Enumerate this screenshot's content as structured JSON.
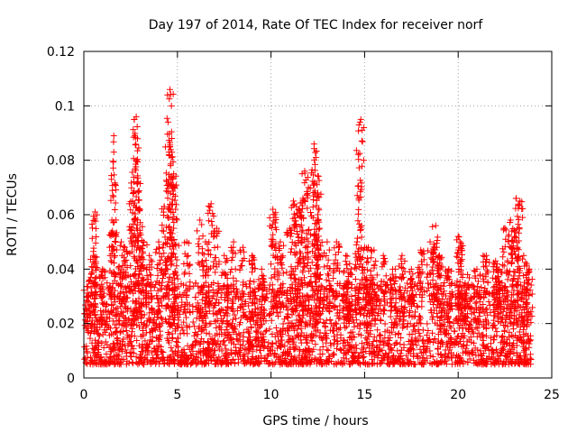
{
  "chart_data": {
    "type": "scatter",
    "title": "Day 197 of 2014, Rate Of TEC Index for receiver norf",
    "xlabel": "GPS time / hours",
    "ylabel": "ROTI / TECUs",
    "xlim": [
      0,
      25
    ],
    "ylim": [
      0,
      0.12
    ],
    "xticks": [
      0,
      5,
      10,
      15,
      20,
      25
    ],
    "yticks": [
      0,
      0.02,
      0.04,
      0.06,
      0.08,
      0.1,
      0.12
    ],
    "xtick_labels": [
      "0",
      "5",
      "10",
      "15",
      "20",
      "25"
    ],
    "ytick_labels": [
      "0",
      "0.02",
      "0.04",
      "0.06",
      "0.08",
      "0.1",
      "0.12"
    ],
    "grid": true,
    "marker": "+",
    "color": "#ff0000",
    "x_range_of_data": [
      0,
      23.9
    ],
    "series": [
      {
        "x": [
          0.3,
          0.5,
          0.6,
          1.0,
          1.5,
          1.6,
          1.6,
          2.0,
          2.2,
          2.6,
          2.7,
          2.8,
          2.8,
          2.9,
          3.0,
          3.2,
          3.5,
          4.0,
          4.3,
          4.5,
          4.6,
          4.6,
          4.7,
          4.8,
          4.9,
          5.5,
          6.2,
          6.5,
          6.8,
          7.1,
          7.5,
          8.0,
          8.5,
          9.0,
          9.5,
          10.1,
          10.2,
          10.5,
          11.0,
          11.2,
          11.4,
          11.5,
          11.7,
          11.8,
          12.0,
          12.3,
          12.4,
          12.5,
          12.5,
          12.6,
          13.0,
          13.5,
          14.0,
          14.2,
          14.6,
          14.7,
          14.8,
          15.0,
          15.2,
          15.5,
          16.0,
          16.5,
          17.0,
          17.5,
          18.0,
          18.5,
          18.8,
          19.0,
          19.5,
          20.0,
          20.1,
          20.5,
          21.0,
          21.5,
          22.0,
          22.2,
          22.5,
          22.8,
          23.0,
          23.1,
          23.3,
          23.5,
          23.8
        ],
        "y": [
          0.036,
          0.045,
          0.061,
          0.04,
          0.058,
          0.083,
          0.089,
          0.05,
          0.048,
          0.065,
          0.095,
          0.096,
          0.08,
          0.072,
          0.062,
          0.05,
          0.045,
          0.05,
          0.063,
          0.094,
          0.106,
          0.085,
          0.088,
          0.075,
          0.062,
          0.05,
          0.058,
          0.05,
          0.064,
          0.055,
          0.045,
          0.05,
          0.048,
          0.045,
          0.04,
          0.062,
          0.06,
          0.05,
          0.055,
          0.065,
          0.06,
          0.062,
          0.066,
          0.076,
          0.07,
          0.086,
          0.081,
          0.068,
          0.06,
          0.055,
          0.05,
          0.05,
          0.045,
          0.042,
          0.05,
          0.093,
          0.095,
          0.048,
          0.048,
          0.047,
          0.045,
          0.04,
          0.045,
          0.04,
          0.047,
          0.05,
          0.056,
          0.045,
          0.04,
          0.052,
          0.05,
          0.038,
          0.04,
          0.045,
          0.043,
          0.04,
          0.055,
          0.058,
          0.052,
          0.066,
          0.065,
          0.045,
          0.04
        ],
        "baseline_band": [
          0.005,
          0.03
        ]
      }
    ]
  }
}
